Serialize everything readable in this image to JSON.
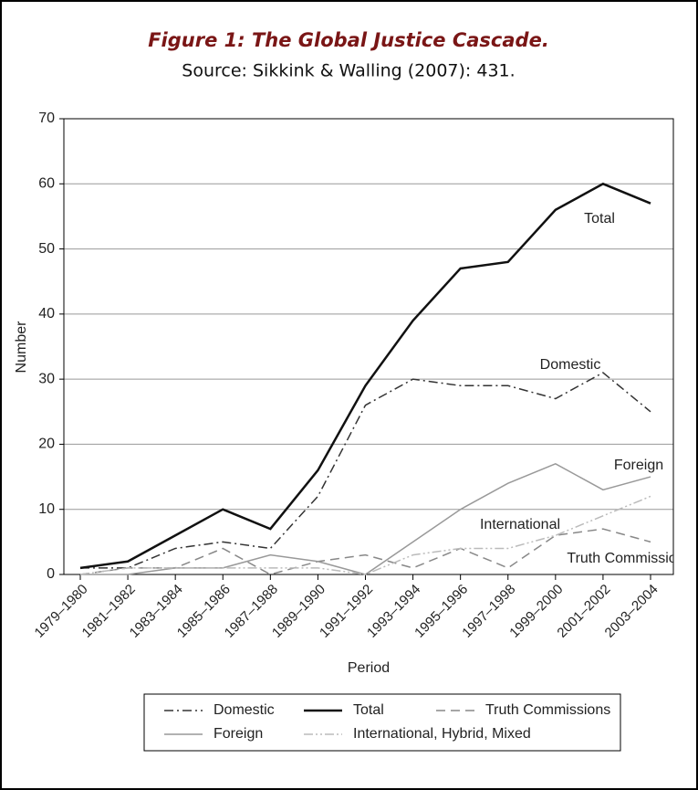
{
  "chart_data": {
    "type": "line",
    "title": "Figure 1: The Global Justice Cascade.",
    "subtitle": "Source: Sikkink & Walling (2007): 431.",
    "x_label": "Period",
    "y_label": "Number",
    "categories": [
      "1979–1980",
      "1981–1982",
      "1983–1984",
      "1985–1986",
      "1987–1988",
      "1989–1990",
      "1991–1992",
      "1993–1994",
      "1995–1996",
      "1997–1998",
      "1999–2000",
      "2001–2002",
      "2003–2004"
    ],
    "series": [
      {
        "name": "Domestic",
        "color": "#333333",
        "style": "dashdot",
        "values": [
          1,
          1,
          4,
          5,
          4,
          12,
          26,
          30,
          29,
          29,
          27,
          31,
          25
        ]
      },
      {
        "name": "Total",
        "color": "#111111",
        "style": "solid-thick",
        "values": [
          1,
          2,
          6,
          10,
          7,
          16,
          29,
          39,
          47,
          48,
          56,
          60,
          57
        ]
      },
      {
        "name": "Truth Commissions",
        "color": "#888888",
        "style": "dashed",
        "values": [
          0,
          1,
          1,
          4,
          0,
          2,
          3,
          1,
          4,
          1,
          6,
          7,
          5
        ]
      },
      {
        "name": "Foreign",
        "color": "#999999",
        "style": "solid",
        "values": [
          0,
          0,
          1,
          1,
          3,
          2,
          0,
          5,
          10,
          14,
          17,
          13,
          15
        ]
      },
      {
        "name": "International, Hybrid, Mixed",
        "color": "#bbbbbb",
        "style": "dashdotdot",
        "values": [
          0,
          1,
          1,
          1,
          1,
          1,
          0,
          3,
          4,
          4,
          6,
          9,
          12
        ]
      }
    ],
    "annotations": [
      "Domestic",
      "Total",
      "Truth Commissions",
      "Foreign",
      "International"
    ],
    "ylim": [
      0,
      70
    ],
    "yticks": [
      0,
      10,
      20,
      30,
      40,
      50,
      60,
      70
    ],
    "grid": true
  }
}
